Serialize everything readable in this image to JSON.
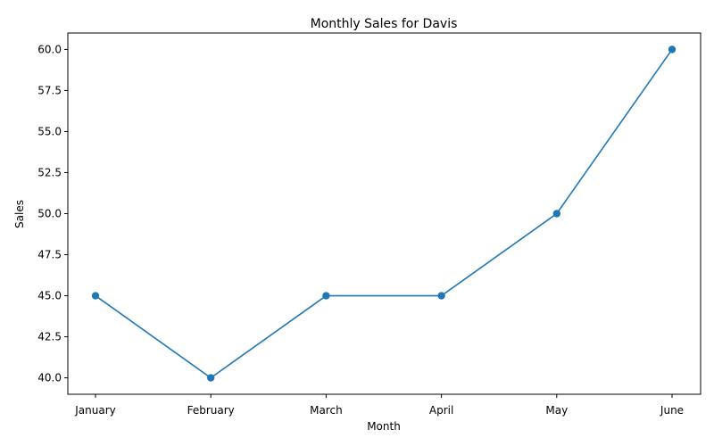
{
  "chart_data": {
    "type": "line",
    "title": "Monthly Sales for Davis",
    "xlabel": "Month",
    "ylabel": "Sales",
    "categories": [
      "January",
      "February",
      "March",
      "April",
      "May",
      "June"
    ],
    "series": [
      {
        "values": [
          45,
          40,
          45,
          45,
          50,
          60
        ]
      }
    ],
    "ylim": [
      39,
      61
    ],
    "yticks": [
      40.0,
      42.5,
      45.0,
      47.5,
      50.0,
      52.5,
      55.0,
      57.5,
      60.0
    ],
    "ytick_labels": [
      "40.0",
      "42.5",
      "45.0",
      "47.5",
      "50.0",
      "52.5",
      "55.0",
      "57.5",
      "60.0"
    ],
    "grid": false,
    "marker": "circle",
    "line_color": "#1f77b4"
  }
}
